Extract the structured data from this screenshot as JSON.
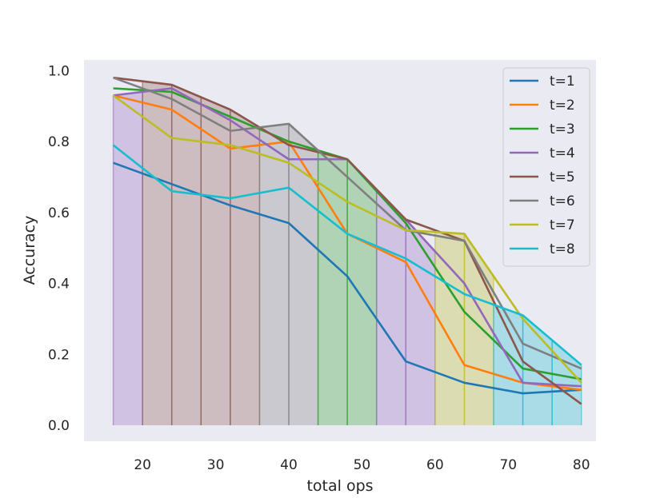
{
  "chart_data": {
    "type": "line",
    "title": "",
    "xlabel": "total ops",
    "ylabel": "Accuracy",
    "xlim": [
      12,
      82
    ],
    "ylim": [
      -0.045,
      1.03
    ],
    "xticks": [
      20,
      30,
      40,
      50,
      60,
      70,
      80
    ],
    "yticks": [
      0.0,
      0.2,
      0.4,
      0.6,
      0.8,
      1.0
    ],
    "ytick_labels": [
      "0.0",
      "0.2",
      "0.4",
      "0.6",
      "0.8",
      "1.0"
    ],
    "grid": false,
    "legend_position": "top-right",
    "x": [
      16,
      24,
      32,
      40,
      48,
      56,
      64,
      72,
      80
    ],
    "series": [
      {
        "name": "t=1",
        "color": "#1f77b4",
        "values": [
          0.74,
          0.68,
          0.62,
          0.57,
          0.42,
          0.18,
          0.12,
          0.09,
          0.1
        ]
      },
      {
        "name": "t=2",
        "color": "#ff7f0e",
        "values": [
          0.93,
          0.89,
          0.78,
          0.8,
          0.54,
          0.46,
          0.17,
          0.12,
          0.1
        ]
      },
      {
        "name": "t=3",
        "color": "#2ca02c",
        "values": [
          0.95,
          0.94,
          0.87,
          0.8,
          0.75,
          0.57,
          0.32,
          0.16,
          0.13
        ]
      },
      {
        "name": "t=4",
        "color": "#9467bd",
        "values": [
          0.93,
          0.95,
          0.86,
          0.75,
          0.75,
          0.58,
          0.4,
          0.12,
          0.11
        ]
      },
      {
        "name": "t=5",
        "color": "#8c564b",
        "values": [
          0.98,
          0.96,
          0.89,
          0.79,
          0.75,
          0.58,
          0.52,
          0.18,
          0.06
        ]
      },
      {
        "name": "t=6",
        "color": "#7f7f7f",
        "values": [
          0.98,
          0.92,
          0.83,
          0.85,
          0.7,
          0.55,
          0.52,
          0.23,
          0.16
        ]
      },
      {
        "name": "t=7",
        "color": "#bcbd22",
        "values": [
          0.93,
          0.81,
          0.79,
          0.74,
          0.63,
          0.55,
          0.54,
          0.3,
          0.12
        ]
      },
      {
        "name": "t=8",
        "color": "#17becf",
        "values": [
          0.79,
          0.66,
          0.64,
          0.67,
          0.54,
          0.47,
          0.37,
          0.31,
          0.17
        ]
      }
    ],
    "bands": [
      {
        "x0": 16,
        "x1": 20,
        "series": "t=4"
      },
      {
        "x0": 20,
        "x1": 24,
        "series": "t=5"
      },
      {
        "x0": 24,
        "x1": 28,
        "series": "t=5"
      },
      {
        "x0": 28,
        "x1": 32,
        "series": "t=5"
      },
      {
        "x0": 32,
        "x1": 36,
        "series": "t=5"
      },
      {
        "x0": 36,
        "x1": 40,
        "series": "t=6"
      },
      {
        "x0": 40,
        "x1": 44,
        "series": "t=6"
      },
      {
        "x0": 44,
        "x1": 48,
        "series": "t=3"
      },
      {
        "x0": 48,
        "x1": 52,
        "series": "t=3"
      },
      {
        "x0": 52,
        "x1": 56,
        "series": "t=4"
      },
      {
        "x0": 56,
        "x1": 60,
        "series": "t=4"
      },
      {
        "x0": 60,
        "x1": 64,
        "series": "t=7"
      },
      {
        "x0": 64,
        "x1": 68,
        "series": "t=7"
      },
      {
        "x0": 68,
        "x1": 72,
        "series": "t=8"
      },
      {
        "x0": 72,
        "x1": 76,
        "series": "t=8"
      },
      {
        "x0": 76,
        "x1": 80,
        "series": "t=8"
      }
    ]
  }
}
